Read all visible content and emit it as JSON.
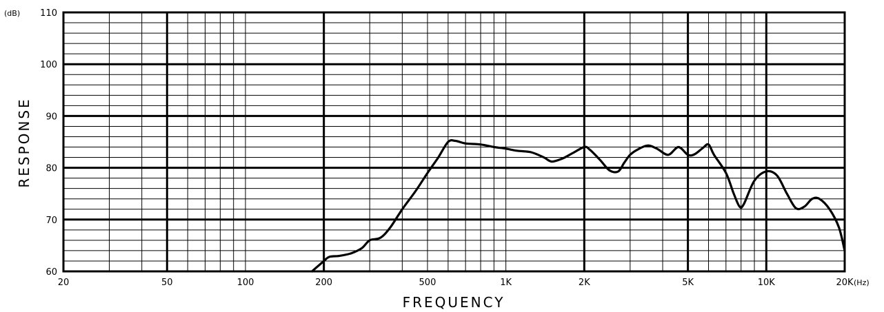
{
  "chart_data": {
    "type": "line",
    "xscale": "log",
    "xlim": [
      20,
      20000
    ],
    "ylim": [
      60,
      110
    ],
    "grid": true,
    "xlabel": "FREQUENCY",
    "ylabel": "RESPONSE",
    "x_unit": "(Hz)",
    "y_unit": "(dB)",
    "x_ticks": [
      {
        "value": 20,
        "label": "20"
      },
      {
        "value": 50,
        "label": "50"
      },
      {
        "value": 100,
        "label": "100"
      },
      {
        "value": 200,
        "label": "200"
      },
      {
        "value": 500,
        "label": "500"
      },
      {
        "value": 1000,
        "label": "1K"
      },
      {
        "value": 2000,
        "label": "2K"
      },
      {
        "value": 5000,
        "label": "5K"
      },
      {
        "value": 10000,
        "label": "10K"
      },
      {
        "value": 20000,
        "label": "20K"
      }
    ],
    "y_ticks": [
      {
        "value": 60,
        "label": "60"
      },
      {
        "value": 70,
        "label": "70"
      },
      {
        "value": 80,
        "label": "80"
      },
      {
        "value": 90,
        "label": "90"
      },
      {
        "value": 100,
        "label": "100"
      },
      {
        "value": 110,
        "label": "110"
      }
    ],
    "series": [
      {
        "x": [
          180,
          200,
          210,
          230,
          255,
          280,
          300,
          330,
          360,
          400,
          450,
          500,
          550,
          600,
          640,
          700,
          800,
          900,
          1000,
          1100,
          1250,
          1400,
          1500,
          1650,
          1800,
          2000,
          2100,
          2300,
          2500,
          2700,
          2850,
          3000,
          3200,
          3500,
          3800,
          4200,
          4600,
          5000,
          5300,
          5700,
          6000,
          6300,
          7000,
          7500,
          7900,
          8200,
          9000,
          10000,
          11000,
          12000,
          13000,
          14000,
          15000,
          16000,
          17500,
          19000,
          20000
        ],
        "y": [
          60,
          62,
          62.8,
          63,
          63.5,
          64.5,
          66,
          66.5,
          68.5,
          72,
          75.5,
          79,
          82,
          85,
          85.2,
          84.7,
          84.5,
          84,
          83.7,
          83.3,
          83,
          82,
          81.2,
          81.8,
          82.8,
          84,
          83.5,
          81.5,
          79.5,
          79.3,
          81,
          82.5,
          83.5,
          84.3,
          83.7,
          82.5,
          84,
          82.5,
          82.6,
          83.8,
          84.5,
          82.5,
          79,
          75,
          72.5,
          73,
          77.5,
          79.3,
          78.5,
          75,
          72.2,
          72.5,
          74,
          74,
          72,
          68.5,
          64
        ]
      }
    ]
  }
}
